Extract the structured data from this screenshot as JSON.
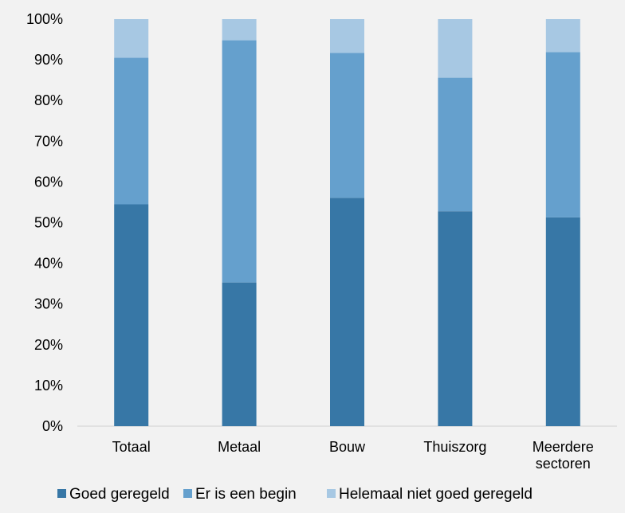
{
  "chart_data": {
    "type": "bar",
    "stacked": true,
    "percent": true,
    "categories": [
      [
        "Totaal"
      ],
      [
        "Metaal"
      ],
      [
        "Bouw"
      ],
      [
        "Thuiszorg"
      ],
      [
        "Meerdere",
        "sectoren"
      ]
    ],
    "series": [
      {
        "name": "Goed geregeld",
        "color": "#3777a6",
        "values": [
          54.5,
          35.3,
          56.1,
          52.8,
          51.3
        ]
      },
      {
        "name": "Er is een begin",
        "color": "#65a0cd",
        "values": [
          36.0,
          59.5,
          35.6,
          32.8,
          40.6
        ]
      },
      {
        "name": "Helemaal niet goed geregeld",
        "color": "#a7c8e3",
        "values": [
          9.5,
          5.2,
          8.3,
          14.4,
          8.1
        ]
      }
    ],
    "yticks": [
      "0%",
      "10%",
      "20%",
      "30%",
      "40%",
      "50%",
      "60%",
      "70%",
      "80%",
      "90%",
      "100%"
    ],
    "ylim": [
      0,
      100
    ],
    "grid": false,
    "legend_position": "bottom",
    "title": "",
    "xlabel": "",
    "ylabel": ""
  }
}
